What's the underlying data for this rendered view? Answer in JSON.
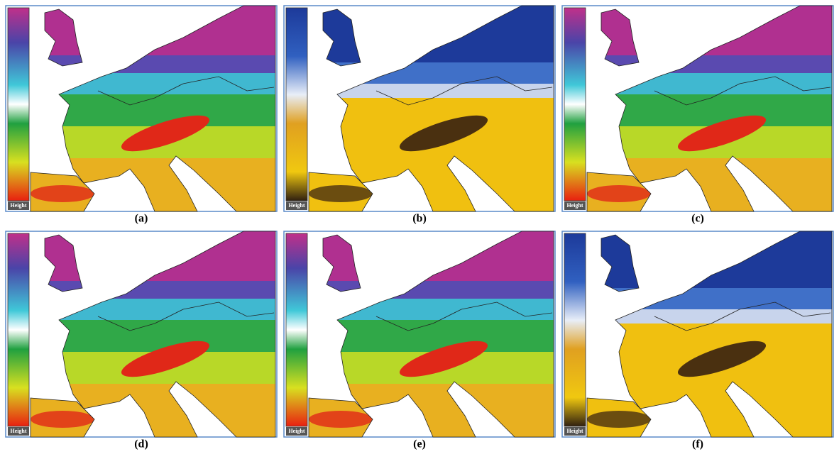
{
  "panels": [
    {
      "label": "(a)",
      "legend": "Height",
      "scheme": "rainbow"
    },
    {
      "label": "(b)",
      "legend": "Height",
      "scheme": "terrain"
    },
    {
      "label": "(c)",
      "legend": "Height",
      "scheme": "rainbow"
    },
    {
      "label": "(d)",
      "legend": "Height",
      "scheme": "rainbow"
    },
    {
      "label": "(e)",
      "legend": "Height",
      "scheme": "rainbow"
    },
    {
      "label": "(f)",
      "legend": "Height",
      "scheme": "terrain"
    }
  ]
}
